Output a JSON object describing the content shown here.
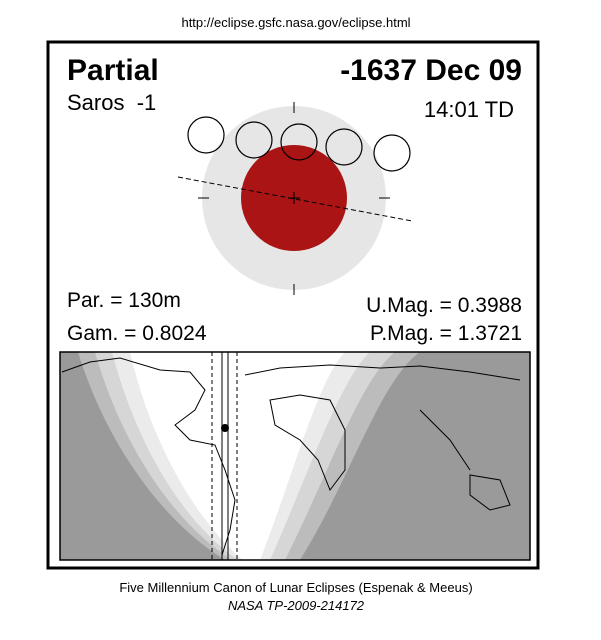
{
  "header": {
    "url": "http://eclipse.gsfc.nasa.gov/eclipse.html"
  },
  "eclipse": {
    "type_label": "Partial",
    "date": "-1637 Dec 09",
    "saros": "Saros  -1",
    "time": "14:01 TD",
    "duration": "Par. = 130m",
    "gamma": "Gam. = 0.8024",
    "umbral_magnitude": "U.Mag. = 0.3988",
    "penumbral_magnitude": "P.Mag. = 1.3721"
  },
  "footer": {
    "canon": "Five Millennium Canon of Lunar Eclipses (Espenak & Meeus)",
    "report": "NASA TP-2009-214172"
  }
}
